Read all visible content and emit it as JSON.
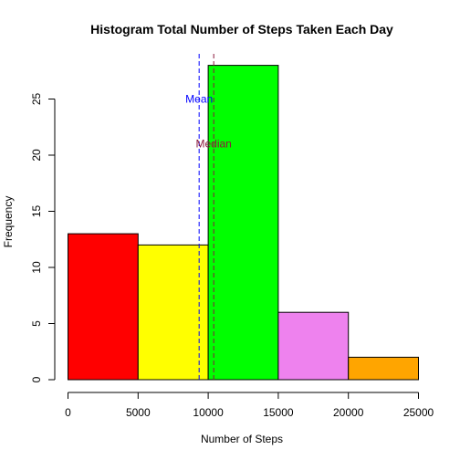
{
  "chart_data": {
    "type": "bar",
    "title": "Histogram Total Number of Steps Taken Each Day",
    "xlabel": "Number of Steps",
    "ylabel": "Frequency",
    "xlim": [
      0,
      25000
    ],
    "ylim": [
      0,
      28
    ],
    "x_ticks": [
      0,
      5000,
      10000,
      15000,
      20000,
      25000
    ],
    "y_ticks": [
      0,
      5,
      10,
      15,
      20,
      25
    ],
    "bins": [
      {
        "start": 0,
        "end": 5000,
        "value": 13,
        "color": "#ff0000"
      },
      {
        "start": 5000,
        "end": 10000,
        "value": 12,
        "color": "#ffff00"
      },
      {
        "start": 10000,
        "end": 15000,
        "value": 28,
        "color": "#00ff00"
      },
      {
        "start": 15000,
        "end": 20000,
        "value": 6,
        "color": "#ee82ee"
      },
      {
        "start": 20000,
        "end": 25000,
        "value": 2,
        "color": "#ffa500"
      }
    ],
    "annotations": [
      {
        "label": "Mean",
        "x": 9354,
        "label_y": 25,
        "color": "#0000ff"
      },
      {
        "label": "Median",
        "x": 10395,
        "label_y": 21,
        "color": "#8b1a3c"
      }
    ],
    "grid": false,
    "legend": "none"
  }
}
